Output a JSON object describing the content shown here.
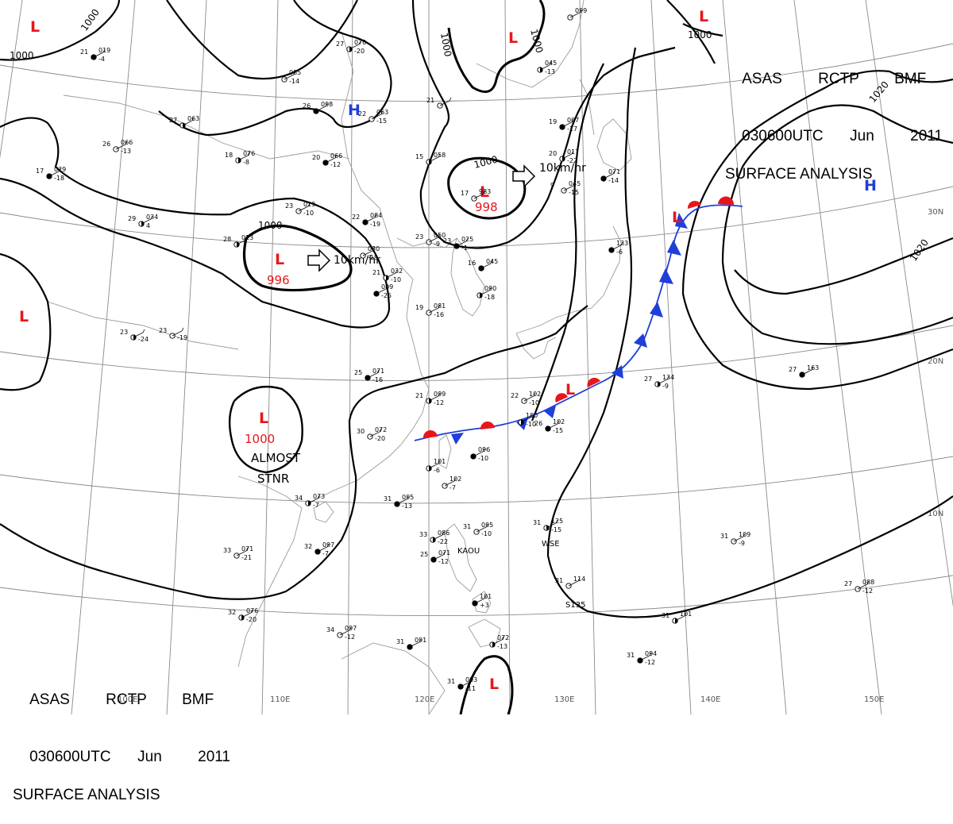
{
  "title": {
    "line1_parts": [
      "ASAS",
      "RCTP",
      "BMF"
    ],
    "line2_parts": [
      "030600UTC",
      "Jun",
      "2011"
    ],
    "line3": "SURFACE ANALYSIS"
  },
  "longitude_labels": [
    "100E",
    "110E",
    "120E",
    "130E",
    "140E",
    "150E"
  ],
  "latitude_labels": [
    "30N",
    "20N",
    "10N"
  ],
  "isobar_labels": [
    "1000",
    "1000",
    "1000",
    "1000",
    "1000",
    "1000",
    "1000",
    "1020",
    "1020"
  ],
  "pressure_centers": [
    {
      "type": "L",
      "value": "996"
    },
    {
      "type": "L",
      "value": "998"
    },
    {
      "type": "L",
      "value": "1000"
    },
    {
      "type": "H",
      "value": ""
    },
    {
      "type": "H",
      "value": ""
    },
    {
      "type": "L",
      "value": ""
    },
    {
      "type": "L",
      "value": ""
    },
    {
      "type": "L",
      "value": ""
    },
    {
      "type": "L",
      "value": ""
    },
    {
      "type": "L",
      "value": ""
    },
    {
      "type": "L",
      "value": ""
    },
    {
      "type": "L",
      "value": ""
    }
  ],
  "motion_labels": [
    "10km/hr",
    "10km/hr"
  ],
  "status_labels": [
    "ALMOST",
    "STNR"
  ],
  "station_labels": [
    "KAOU",
    "WSE",
    "S135"
  ],
  "stations": [
    {
      "t": "21",
      "p": "019",
      "d": "-4"
    },
    {
      "t": "27",
      "p": "070",
      "d": "-20"
    },
    {
      "t": "",
      "p": "085",
      "d": "-14"
    },
    {
      "t": "26",
      "p": "098",
      "d": ""
    },
    {
      "t": "27",
      "p": "063",
      "d": ""
    },
    {
      "t": "22",
      "p": "063",
      "d": "-15"
    },
    {
      "t": "20",
      "p": "066",
      "d": "-12"
    },
    {
      "t": "18",
      "p": "076",
      "d": "-8"
    },
    {
      "t": "26",
      "p": "066",
      "d": "-13"
    },
    {
      "t": "17",
      "p": "029",
      "d": "-18"
    },
    {
      "t": "29",
      "p": "034",
      "d": "4"
    },
    {
      "t": "23",
      "p": "019",
      "d": "-10"
    },
    {
      "t": "22",
      "p": "084",
      "d": "-19"
    },
    {
      "t": "28",
      "p": "013",
      "d": ""
    },
    {
      "t": "",
      "p": "030",
      "d": "-19"
    },
    {
      "t": "",
      "p": "009",
      "d": "-25"
    },
    {
      "t": "21",
      "p": "032",
      "d": "-10"
    },
    {
      "t": "23",
      "p": "050",
      "d": "-9"
    },
    {
      "t": "23",
      "p": "025",
      "d": "-1"
    },
    {
      "t": "15",
      "p": "058",
      "d": ""
    },
    {
      "t": "17",
      "p": "983",
      "d": ""
    },
    {
      "t": "19",
      "p": "007",
      "d": "-17"
    },
    {
      "t": "20",
      "p": "017",
      "d": "-22"
    },
    {
      "t": "9",
      "p": "045",
      "d": "-15"
    },
    {
      "t": "",
      "p": "071",
      "d": "-14"
    },
    {
      "t": "",
      "p": "045",
      "d": "-13"
    },
    {
      "t": "",
      "p": "099",
      "d": ""
    },
    {
      "t": "16",
      "p": "045",
      "d": ""
    },
    {
      "t": "",
      "p": "090",
      "d": "-18"
    },
    {
      "t": "19",
      "p": "081",
      "d": "-16"
    },
    {
      "t": "",
      "p": "133",
      "d": "-6"
    },
    {
      "t": "23",
      "p": "",
      "d": "-24"
    },
    {
      "t": "23",
      "p": "",
      "d": "-19"
    },
    {
      "t": "25",
      "p": "071",
      "d": "-16"
    },
    {
      "t": "21",
      "p": "099",
      "d": "-12"
    },
    {
      "t": "22",
      "p": "102",
      "d": "-10"
    },
    {
      "t": "26",
      "p": "102",
      "d": "-15"
    },
    {
      "t": "",
      "p": "100",
      "d": "-10"
    },
    {
      "t": "30",
      "p": "072",
      "d": "-20"
    },
    {
      "t": "",
      "p": "096",
      "d": "-10"
    },
    {
      "t": "",
      "p": "101",
      "d": "-6"
    },
    {
      "t": "",
      "p": "102",
      "d": "-7"
    },
    {
      "t": "31",
      "p": "095",
      "d": "-13"
    },
    {
      "t": "34",
      "p": "073",
      "d": "-7"
    },
    {
      "t": "33",
      "p": "071",
      "d": "-21"
    },
    {
      "t": "32",
      "p": "097",
      "d": "-7"
    },
    {
      "t": "33",
      "p": "086",
      "d": "-22"
    },
    {
      "t": "31",
      "p": "095",
      "d": "-10"
    },
    {
      "t": "25",
      "p": "071",
      "d": "-12"
    },
    {
      "t": "31",
      "p": "125",
      "d": "-15"
    },
    {
      "t": "31",
      "p": "114",
      "d": ""
    },
    {
      "t": "",
      "p": "101",
      "d": "+3"
    },
    {
      "t": "32",
      "p": "076",
      "d": "-20"
    },
    {
      "t": "34",
      "p": "097",
      "d": "-12"
    },
    {
      "t": "31",
      "p": "091",
      "d": ""
    },
    {
      "t": "",
      "p": "072",
      "d": "-13"
    },
    {
      "t": "31",
      "p": "109",
      "d": "-9"
    },
    {
      "t": "31",
      "p": "094",
      "d": "-12"
    },
    {
      "t": "31",
      "p": "101",
      "d": ""
    },
    {
      "t": "27",
      "p": "088",
      "d": "-12"
    },
    {
      "t": "27",
      "p": "163",
      "d": ""
    },
    {
      "t": "27",
      "p": "134",
      "d": "-9"
    },
    {
      "t": "21",
      "p": "",
      "d": ""
    },
    {
      "t": "31",
      "p": "093",
      "d": "-11"
    }
  ],
  "colors": {
    "isobar": "#000000",
    "low_center": "#e8161b",
    "high_center": "#1f3fd8",
    "warm_front": "#e8161b",
    "cold_front": "#1f3fd8",
    "grid": "#8a8a8a",
    "coast": "#9a9a9a"
  }
}
